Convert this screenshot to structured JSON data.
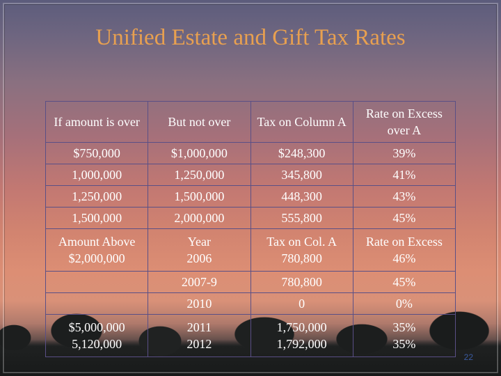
{
  "title": "Unified Estate and Gift Tax Rates",
  "headers": [
    "If amount is over",
    "But not over",
    "Tax on Column A",
    "Rate on Excess over A"
  ],
  "rows": [
    [
      "$750,000",
      "$1,000,000",
      "$248,300",
      "39%"
    ],
    [
      "1,000,000",
      "1,250,000",
      "345,800",
      "41%"
    ],
    [
      "1,250,000",
      "1,500,000",
      "448,300",
      "43%"
    ],
    [
      "1,500,000",
      "2,000,000",
      "555,800",
      "45%"
    ]
  ],
  "subheaders": [
    "Amount Above",
    "Year",
    "Tax on Col. A",
    "Rate on Excess"
  ],
  "year_rows": [
    [
      "$2,000,000",
      "2006",
      "780,800",
      "46%"
    ],
    [
      "",
      "2007-9",
      "780,800",
      "45%"
    ],
    [
      "",
      "2010",
      "0",
      "0%"
    ],
    [
      "$5,000,000",
      "2011",
      "1,750,000",
      "35%"
    ],
    [
      "5,120,000",
      "2012",
      "1,792,000",
      "35%"
    ]
  ],
  "page_number": "22"
}
